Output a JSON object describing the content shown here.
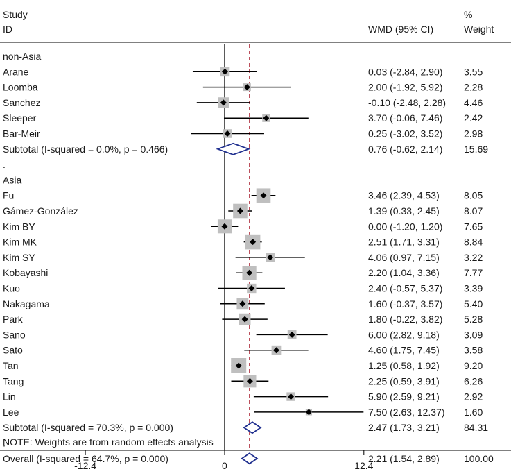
{
  "chart_data": {
    "type": "forest",
    "header": {
      "study": "Study",
      "id": "ID",
      "effect": "WMD (95% CI)",
      "weight_pct": "%",
      "weight": "Weight"
    },
    "xlim": [
      -20,
      25.5
    ],
    "xticks": [
      {
        "value": -12.4,
        "label": "-12.4"
      },
      {
        "value": 0,
        "label": "0"
      },
      {
        "value": 12.4,
        "label": "12.4"
      }
    ],
    "null_line": 0,
    "overall_line": 2.21,
    "rows": [
      {
        "kind": "group",
        "label": "non-Asia"
      },
      {
        "kind": "study",
        "label": "Arane",
        "est": 0.03,
        "lo": -2.84,
        "hi": 2.9,
        "weight": 3.55,
        "ci_text": "0.03 (-2.84, 2.90)",
        "weight_text": "3.55"
      },
      {
        "kind": "study",
        "label": "Loomba",
        "est": 2.0,
        "lo": -1.92,
        "hi": 5.92,
        "weight": 2.28,
        "ci_text": "2.00 (-1.92, 5.92)",
        "weight_text": "2.28"
      },
      {
        "kind": "study",
        "label": "Sanchez",
        "est": -0.1,
        "lo": -2.48,
        "hi": 2.28,
        "weight": 4.46,
        "ci_text": "-0.10 (-2.48, 2.28)",
        "weight_text": "4.46"
      },
      {
        "kind": "study",
        "label": "Sleeper",
        "est": 3.7,
        "lo": -0.06,
        "hi": 7.46,
        "weight": 2.42,
        "ci_text": "3.70 (-0.06, 7.46)",
        "weight_text": "2.42"
      },
      {
        "kind": "study",
        "label": "Bar-Meir",
        "est": 0.25,
        "lo": -3.02,
        "hi": 3.52,
        "weight": 2.98,
        "ci_text": "0.25 (-3.02, 3.52)",
        "weight_text": "2.98"
      },
      {
        "kind": "subtotal",
        "label": "Subtotal  (I-squared = 0.0%, p = 0.466)",
        "est": 0.76,
        "lo": -0.62,
        "hi": 2.14,
        "ci_text": "0.76 (-0.62, 2.14)",
        "weight_text": "15.69"
      },
      {
        "kind": "dot",
        "label": "."
      },
      {
        "kind": "group",
        "label": "Asia"
      },
      {
        "kind": "study",
        "label": "Fu",
        "est": 3.46,
        "lo": 2.39,
        "hi": 4.53,
        "weight": 8.05,
        "ci_text": "3.46 (2.39, 4.53)",
        "weight_text": "8.05"
      },
      {
        "kind": "study",
        "label": "Gámez-González",
        "est": 1.39,
        "lo": 0.33,
        "hi": 2.45,
        "weight": 8.07,
        "ci_text": "1.39 (0.33, 2.45)",
        "weight_text": "8.07"
      },
      {
        "kind": "study",
        "label": "Kim BY",
        "est": 0.0,
        "lo": -1.2,
        "hi": 1.2,
        "weight": 7.65,
        "ci_text": "0.00 (-1.20, 1.20)",
        "weight_text": "7.65"
      },
      {
        "kind": "study",
        "label": "Kim MK",
        "est": 2.51,
        "lo": 1.71,
        "hi": 3.31,
        "weight": 8.84,
        "ci_text": "2.51 (1.71, 3.31)",
        "weight_text": "8.84"
      },
      {
        "kind": "study",
        "label": "Kim SY",
        "est": 4.06,
        "lo": 0.97,
        "hi": 7.15,
        "weight": 3.22,
        "ci_text": "4.06 (0.97, 7.15)",
        "weight_text": "3.22"
      },
      {
        "kind": "study",
        "label": "Kobayashi",
        "est": 2.2,
        "lo": 1.04,
        "hi": 3.36,
        "weight": 7.77,
        "ci_text": "2.20 (1.04, 3.36)",
        "weight_text": "7.77"
      },
      {
        "kind": "study",
        "label": "Kuo",
        "est": 2.4,
        "lo": -0.57,
        "hi": 5.37,
        "weight": 3.39,
        "ci_text": "2.40 (-0.57, 5.37)",
        "weight_text": "3.39"
      },
      {
        "kind": "study",
        "label": "Nakagama",
        "est": 1.6,
        "lo": -0.37,
        "hi": 3.57,
        "weight": 5.4,
        "ci_text": "1.60 (-0.37, 3.57)",
        "weight_text": "5.40"
      },
      {
        "kind": "study",
        "label": "Park",
        "est": 1.8,
        "lo": -0.22,
        "hi": 3.82,
        "weight": 5.28,
        "ci_text": "1.80 (-0.22, 3.82)",
        "weight_text": "5.28"
      },
      {
        "kind": "study",
        "label": "Sano",
        "est": 6.0,
        "lo": 2.82,
        "hi": 9.18,
        "weight": 3.09,
        "ci_text": "6.00 (2.82, 9.18)",
        "weight_text": "3.09"
      },
      {
        "kind": "study",
        "label": "Sato",
        "est": 4.6,
        "lo": 1.75,
        "hi": 7.45,
        "weight": 3.58,
        "ci_text": "4.60 (1.75, 7.45)",
        "weight_text": "3.58"
      },
      {
        "kind": "study",
        "label": "Tan",
        "est": 1.25,
        "lo": 0.58,
        "hi": 1.92,
        "weight": 9.2,
        "ci_text": "1.25 (0.58, 1.92)",
        "weight_text": "9.20"
      },
      {
        "kind": "study",
        "label": "Tang",
        "est": 2.25,
        "lo": 0.59,
        "hi": 3.91,
        "weight": 6.26,
        "ci_text": "2.25 (0.59, 3.91)",
        "weight_text": "6.26"
      },
      {
        "kind": "study",
        "label": "Lin",
        "est": 5.9,
        "lo": 2.59,
        "hi": 9.21,
        "weight": 2.92,
        "ci_text": "5.90 (2.59, 9.21)",
        "weight_text": "2.92"
      },
      {
        "kind": "study",
        "label": "Lee",
        "est": 7.5,
        "lo": 2.63,
        "hi": 12.37,
        "weight": 1.6,
        "ci_text": "7.50 (2.63, 12.37)",
        "weight_text": "1.60"
      },
      {
        "kind": "subtotal",
        "label": "Subtotal  (I-squared = 70.3%, p = 0.000)",
        "est": 2.47,
        "lo": 1.73,
        "hi": 3.21,
        "ci_text": "2.47 (1.73, 3.21)",
        "weight_text": "84.31"
      },
      {
        "kind": "dot",
        "label": "."
      },
      {
        "kind": "overall",
        "label": "Overall  (I-squared = 64.7%, p = 0.000)",
        "est": 2.21,
        "lo": 1.54,
        "hi": 2.89,
        "ci_text": "2.21 (1.54, 2.89)",
        "weight_text": "100.00"
      }
    ],
    "note": "NOTE: Weights are from random effects analysis",
    "colors": {
      "text": "#1a1a1a",
      "ci_line": "#000000",
      "box": "#bfbfbf",
      "point": "#000000",
      "diamond": "#1f2f8f",
      "overall_line": "#b03040",
      "axis": "#000000"
    },
    "grid": false
  }
}
